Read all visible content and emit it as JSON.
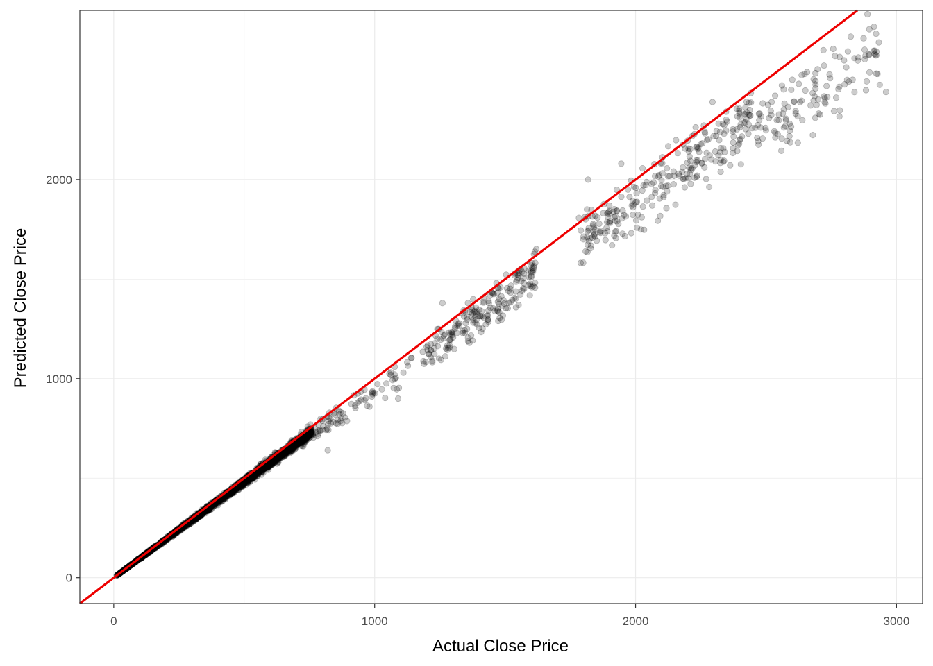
{
  "chart_data": {
    "type": "scatter",
    "title": "",
    "xlabel": "Actual Close Price",
    "ylabel": "Predicted Close Price",
    "xlim": [
      -130,
      3100
    ],
    "ylim": [
      -130,
      2850
    ],
    "x_ticks": [
      0,
      1000,
      2000,
      3000
    ],
    "y_ticks": [
      0,
      1000,
      2000
    ],
    "grid": true,
    "legend": "none",
    "colors": {
      "points": "#000000",
      "point_opacity": 0.2,
      "reference_line": "#ee0000",
      "panel_border": "#333333",
      "grid": "#ebebeb"
    },
    "reference_line": {
      "type": "identity",
      "slope": 1,
      "intercept": 0
    },
    "point_clusters": [
      {
        "x_range": [
          10,
          760
        ],
        "y_over_x": [
          0.92,
          1.02
        ],
        "approx_count": 2400
      },
      {
        "x_range": [
          760,
          1000
        ],
        "y_over_x": [
          0.88,
          1.02
        ],
        "approx_count": 60
      },
      {
        "x_range": [
          1000,
          1160
        ],
        "y_over_x": [
          0.85,
          1.0
        ],
        "approx_count": 20
      },
      {
        "x_range": [
          1180,
          1620
        ],
        "y_over_x": [
          0.86,
          1.02
        ],
        "approx_count": 200
      },
      {
        "x_range": [
          1780,
          2450
        ],
        "y_over_x": [
          0.86,
          1.02
        ],
        "approx_count": 260
      },
      {
        "x_range": [
          2450,
          2960
        ],
        "y_over_x": [
          0.83,
          0.98
        ],
        "approx_count": 130
      }
    ],
    "sample_points": [
      [
        1818,
        2000
      ],
      [
        1945,
        2080
      ],
      [
        2295,
        2390
      ],
      [
        2960,
        2440
      ],
      [
        2720,
        2650
      ],
      [
        1840,
        1720
      ],
      [
        1910,
        1670
      ],
      [
        1800,
        1700
      ],
      [
        1600,
        1510
      ],
      [
        1560,
        1550
      ],
      [
        1110,
        1030
      ],
      [
        1090,
        900
      ],
      [
        1260,
        1380
      ],
      [
        980,
        860
      ],
      [
        820,
        640
      ]
    ]
  }
}
